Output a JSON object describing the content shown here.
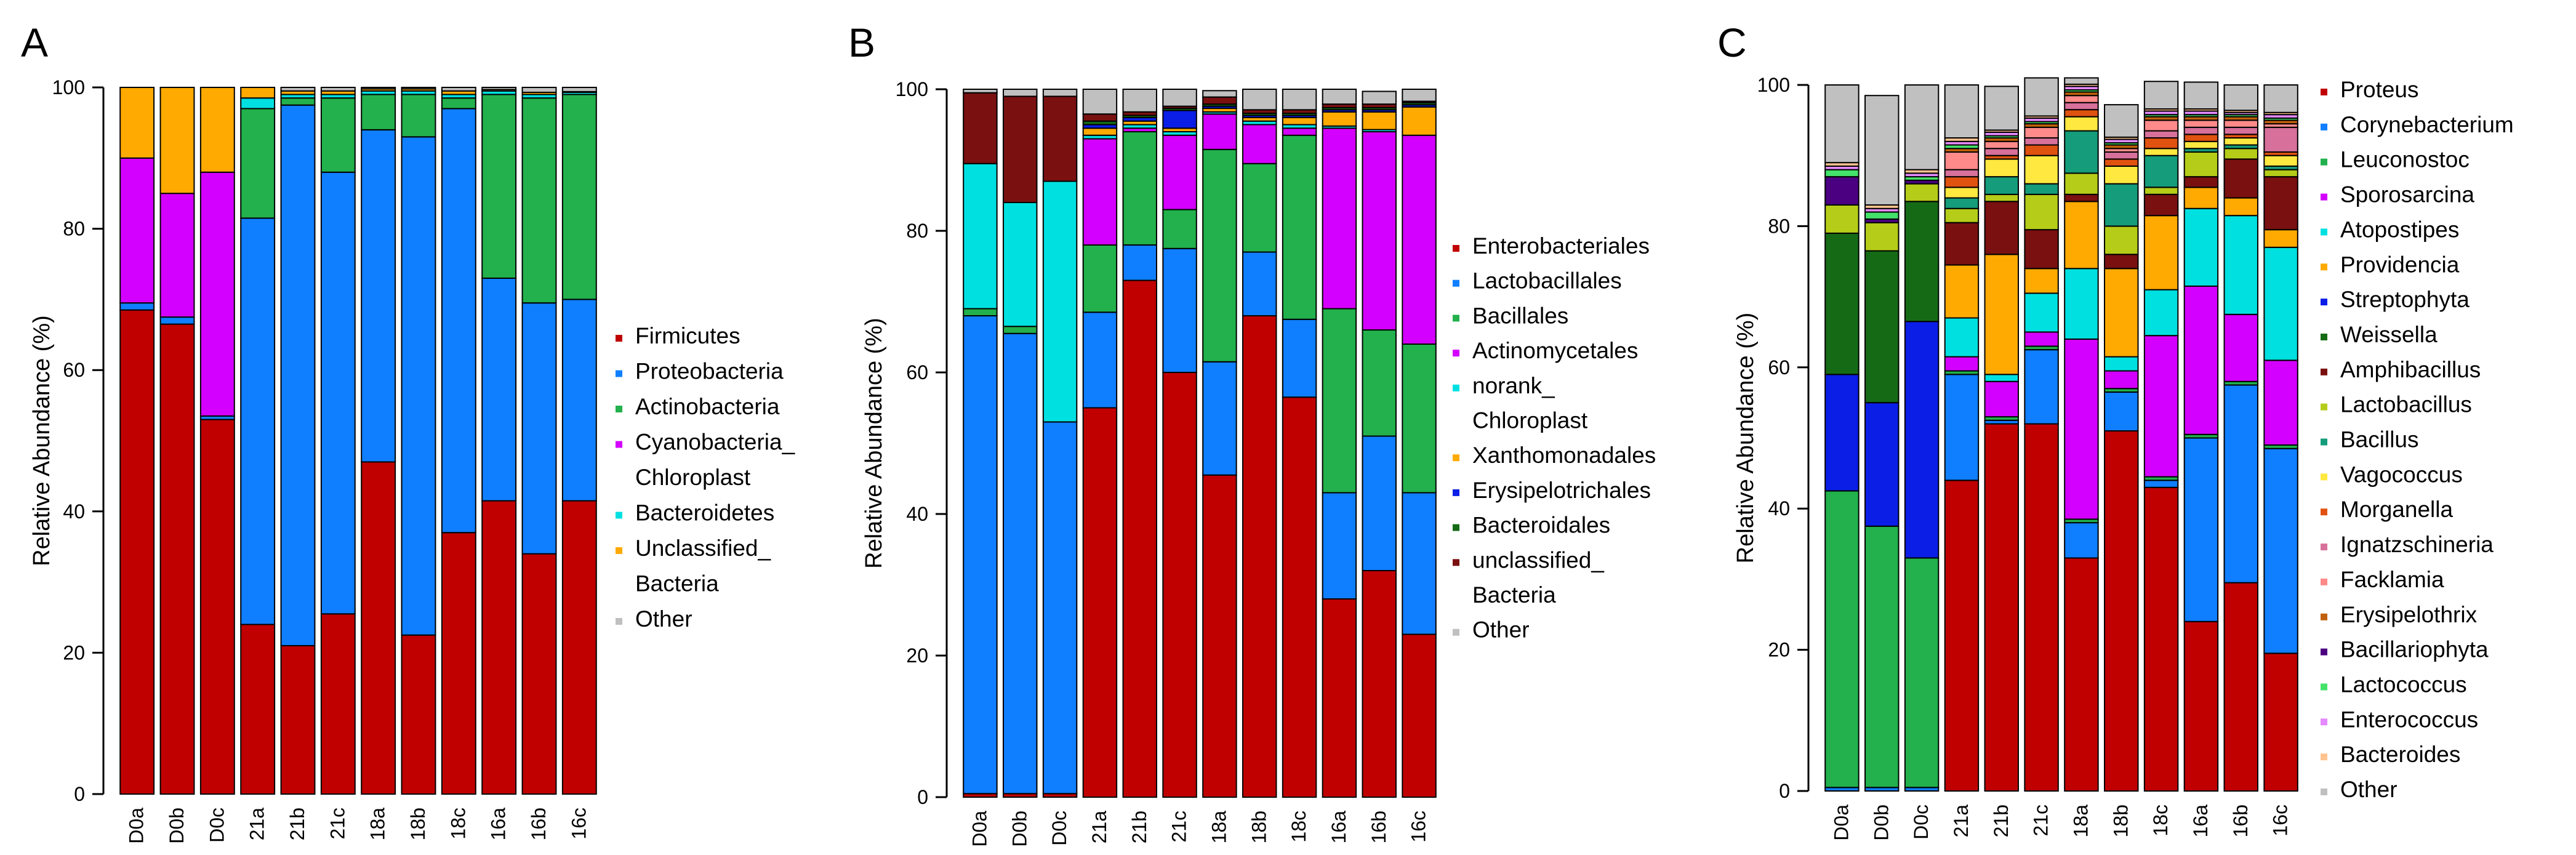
{
  "chart_data": [
    {
      "panel_label": "A",
      "type": "bar",
      "stacked": true,
      "title": "",
      "xlabel": "",
      "ylabel": "Relative Abundance (%)",
      "ylim": [
        0,
        100
      ],
      "yticks": [
        0,
        20,
        40,
        60,
        80,
        100
      ],
      "categories": [
        "D0a",
        "D0b",
        "D0c",
        "21a",
        "21b",
        "21c",
        "18a",
        "18b",
        "18c",
        "16a",
        "16b",
        "16c"
      ],
      "legend": [
        {
          "label": "Firmicutes",
          "color": "#c00000"
        },
        {
          "label": "Proteobacteria",
          "color": "#0f7fff"
        },
        {
          "label": "Actinobacteria",
          "color": "#22b14c"
        },
        {
          "label": "Cyanobacteria_\nChloroplast",
          "color": "#d400ff"
        },
        {
          "label": "Bacteroidetes",
          "color": "#00e0e0"
        },
        {
          "label": "Unclassified_\nBacteria",
          "color": "#ffaa00"
        },
        {
          "label": "Other",
          "color": "#c0c0c0"
        }
      ],
      "series": [
        {
          "name": "Firmicutes",
          "color": "#c00000",
          "values": [
            68.5,
            66.5,
            53,
            24,
            21,
            25.5,
            47,
            22.5,
            37,
            41.5,
            34,
            41.5
          ]
        },
        {
          "name": "Proteobacteria",
          "color": "#0f7fff",
          "values": [
            1,
            1,
            0.5,
            57.5,
            76.5,
            62.5,
            47,
            70.5,
            60,
            31.5,
            35.5,
            28.5
          ]
        },
        {
          "name": "Actinobacteria",
          "color": "#22b14c",
          "values": [
            0,
            0,
            0,
            15.5,
            1,
            10.5,
            5,
            6,
            1.5,
            26,
            29,
            29
          ]
        },
        {
          "name": "Cyanobacteria_\nChloroplast",
          "color": "#d400ff",
          "values": [
            20.5,
            17.5,
            34.5,
            0,
            0,
            0,
            0,
            0,
            0,
            0,
            0,
            0
          ]
        },
        {
          "name": "Bacteroidetes",
          "color": "#00e0e0",
          "values": [
            0,
            0,
            0,
            1.5,
            0.5,
            0.5,
            0.5,
            0.5,
            0.5,
            0.5,
            0.5,
            0.3
          ]
        },
        {
          "name": "Unclassified_\nBacteria",
          "color": "#ffaa00",
          "values": [
            10,
            15,
            12,
            1.5,
            0.5,
            0.5,
            0.3,
            0.3,
            0.5,
            0.2,
            0.3,
            0.1
          ]
        },
        {
          "name": "Other",
          "color": "#c0c0c0",
          "values": [
            0,
            0,
            0,
            0,
            0.5,
            0.5,
            0.2,
            0.2,
            0.5,
            0.3,
            0.7,
            0.6
          ]
        },
        {
          "name": "",
          "color": "#1a1a1a",
          "values": [
            0,
            0,
            0,
            0,
            0,
            0,
            0,
            0,
            0,
            0,
            0,
            0
          ]
        }
      ]
    },
    {
      "panel_label": "B",
      "type": "bar",
      "stacked": true,
      "title": "",
      "xlabel": "",
      "ylabel": "Relative Abundance (%)",
      "ylim": [
        0,
        100
      ],
      "yticks": [
        0,
        20,
        40,
        60,
        80,
        100
      ],
      "categories": [
        "D0a",
        "D0b",
        "D0c",
        "21a",
        "21b",
        "21c",
        "18a",
        "18b",
        "18c",
        "16a",
        "16b",
        "16c"
      ],
      "legend": [
        {
          "label": "Enterobacteriales",
          "color": "#c00000"
        },
        {
          "label": "Lactobacillales",
          "color": "#0f7fff"
        },
        {
          "label": "Bacillales",
          "color": "#22b14c"
        },
        {
          "label": "Actinomycetales",
          "color": "#d400ff"
        },
        {
          "label": "norank_\nChloroplast",
          "color": "#00e0e0"
        },
        {
          "label": "Xanthomonadales",
          "color": "#ffaa00"
        },
        {
          "label": "Erysipelotrichales",
          "color": "#0a1ee6"
        },
        {
          "label": "Bacteroidales",
          "color": "#156b15"
        },
        {
          "label": "unclassified_\nBacteria",
          "color": "#7a1010"
        },
        {
          "label": "Other",
          "color": "#c0c0c0"
        }
      ],
      "series": [
        {
          "name": "Enterobacteriales",
          "color": "#c00000",
          "values": [
            0.5,
            0.5,
            0.5,
            55,
            73,
            60,
            45.5,
            68,
            56.5,
            28,
            32,
            23
          ]
        },
        {
          "name": "Lactobacillales",
          "color": "#0f7fff",
          "values": [
            67.5,
            65,
            52.5,
            13.5,
            5,
            17.5,
            16,
            9,
            11,
            15,
            19,
            20
          ]
        },
        {
          "name": "Bacillales",
          "color": "#22b14c",
          "values": [
            1,
            1,
            0,
            9.5,
            16,
            5.5,
            30,
            12.5,
            26,
            26,
            15,
            21
          ]
        },
        {
          "name": "Actinomycetales",
          "color": "#d400ff",
          "values": [
            0,
            0,
            0,
            15,
            0.5,
            10.5,
            5,
            5.5,
            1,
            25.5,
            28,
            29.5
          ]
        },
        {
          "name": "norank_\nChloroplast",
          "color": "#00e0e0",
          "values": [
            20.5,
            17.5,
            34,
            0.5,
            0.5,
            0.5,
            0.3,
            0.5,
            0.5,
            0.3,
            0.3,
            0
          ]
        },
        {
          "name": "Xanthomonadales",
          "color": "#ffaa00",
          "values": [
            0,
            0,
            0,
            1,
            0.5,
            0.5,
            0.5,
            0.5,
            1,
            2,
            2.5,
            4
          ]
        },
        {
          "name": "Erysipelotrichales",
          "color": "#0a1ee6",
          "values": [
            0,
            0,
            0,
            0.5,
            0.5,
            2.5,
            0.3,
            0.3,
            0.3,
            0.3,
            0.3,
            0.3
          ]
        },
        {
          "name": "Bacteroidales",
          "color": "#156b15",
          "values": [
            0,
            0,
            0,
            0.5,
            0.3,
            0.3,
            0.3,
            0.3,
            0.3,
            0.3,
            0.3,
            0.3
          ]
        },
        {
          "name": "unclassified_\nBacteria",
          "color": "#7a1010",
          "values": [
            10,
            15,
            12,
            1,
            0.5,
            0.3,
            1,
            0.5,
            0.5,
            0.5,
            0.5,
            0.2
          ]
        },
        {
          "name": "Other",
          "color": "#c0c0c0",
          "values": [
            0.5,
            1,
            1,
            3.5,
            3.2,
            2.4,
            0.9,
            2.9,
            2.9,
            2.1,
            1.8,
            1.7
          ]
        }
      ]
    },
    {
      "panel_label": "C",
      "type": "bar",
      "stacked": true,
      "title": "",
      "xlabel": "",
      "ylabel": "Relative Abundance (%)",
      "ylim": [
        0,
        100
      ],
      "yticks": [
        0,
        20,
        40,
        60,
        80,
        100
      ],
      "categories": [
        "D0a",
        "D0b",
        "D0c",
        "21a",
        "21b",
        "21c",
        "18a",
        "18b",
        "18c",
        "16a",
        "16b",
        "16c"
      ],
      "legend": [
        {
          "label": "Proteus",
          "color": "#c00000"
        },
        {
          "label": "Corynebacterium",
          "color": "#0f7fff"
        },
        {
          "label": "Leuconostoc",
          "color": "#22b14c"
        },
        {
          "label": "Sporosarcina",
          "color": "#d400ff"
        },
        {
          "label": "Atopostipes",
          "color": "#00e0e0"
        },
        {
          "label": "Providencia",
          "color": "#ffaa00"
        },
        {
          "label": "Streptophyta",
          "color": "#0a1ee6"
        },
        {
          "label": "Weissella",
          "color": "#156b15"
        },
        {
          "label": "Amphibacillus",
          "color": "#7a1010"
        },
        {
          "label": "Lactobacillus",
          "color": "#b5cc18"
        },
        {
          "label": "Bacillus",
          "color": "#159c7a"
        },
        {
          "label": "Vagococcus",
          "color": "#ffe840"
        },
        {
          "label": "Morganella",
          "color": "#e0520f"
        },
        {
          "label": "Ignatzschineria",
          "color": "#d7709a"
        },
        {
          "label": "Facklamia",
          "color": "#ff8a8a"
        },
        {
          "label": "Erysipelothrix",
          "color": "#c0600a"
        },
        {
          "label": "Bacillariophyta",
          "color": "#4b0082"
        },
        {
          "label": "Lactococcus",
          "color": "#44e26a"
        },
        {
          "label": "Enterococcus",
          "color": "#e48aff"
        },
        {
          "label": "Bacteroides",
          "color": "#ffc490"
        },
        {
          "label": "Other",
          "color": "#c0c0c0"
        }
      ],
      "series": [
        {
          "name": "Proteus",
          "color": "#c00000",
          "values": [
            0,
            0,
            0,
            44,
            52,
            52,
            33,
            51,
            43,
            24,
            29.5,
            19.5
          ]
        },
        {
          "name": "Corynebacterium",
          "color": "#0f7fff",
          "values": [
            0.5,
            0.5,
            0.5,
            15,
            0.5,
            10.5,
            5,
            5.5,
            1,
            26,
            28,
            29
          ]
        },
        {
          "name": "Leuconostoc",
          "color": "#22b14c",
          "values": [
            42,
            37,
            32.5,
            0.5,
            0.5,
            0.5,
            0.5,
            0.5,
            0.5,
            0.5,
            0.5,
            0.5
          ]
        },
        {
          "name": "Sporosarcina",
          "color": "#d400ff",
          "values": [
            0,
            0,
            0,
            2,
            5,
            2,
            25.5,
            2.5,
            20,
            21,
            9.5,
            12
          ]
        },
        {
          "name": "Atopostipes",
          "color": "#00e0e0",
          "values": [
            0,
            0,
            0,
            5.5,
            1,
            5.5,
            10,
            2,
            6.5,
            11,
            14,
            16
          ]
        },
        {
          "name": "Providencia",
          "color": "#ffaa00",
          "values": [
            0,
            0,
            0,
            7.5,
            17,
            3.5,
            9.5,
            12.5,
            10.5,
            3,
            2.5,
            2.5
          ]
        },
        {
          "name": "Streptophyta",
          "color": "#0a1ee6",
          "values": [
            16.5,
            17.5,
            33.5,
            0,
            0,
            0,
            0,
            0,
            0,
            0,
            0,
            0
          ]
        },
        {
          "name": "Weissella",
          "color": "#156b15",
          "values": [
            20,
            21.5,
            17,
            0,
            0,
            0,
            0,
            0,
            0,
            0,
            0,
            0
          ]
        },
        {
          "name": "Amphibacillus",
          "color": "#7a1010",
          "values": [
            0,
            0,
            0,
            6,
            7.5,
            5.5,
            1,
            2,
            3,
            1.5,
            5.5,
            7.5
          ]
        },
        {
          "name": "Lactobacillus",
          "color": "#b5cc18",
          "values": [
            4,
            4,
            2.5,
            2,
            1,
            5,
            3,
            4,
            1,
            3.5,
            1.5,
            1
          ]
        },
        {
          "name": "Bacillus",
          "color": "#159c7a",
          "values": [
            0,
            0,
            0,
            1.5,
            2.5,
            1.5,
            6,
            6,
            4.5,
            0.5,
            0.5,
            0.5
          ]
        },
        {
          "name": "Vagococcus",
          "color": "#ffe840",
          "values": [
            0,
            0,
            0,
            1.5,
            2.5,
            4,
            2,
            2.5,
            1,
            1,
            1,
            1.5
          ]
        },
        {
          "name": "Morganella",
          "color": "#e0520f",
          "values": [
            0,
            0,
            0,
            1.5,
            0.5,
            1.5,
            1,
            1,
            1.5,
            1,
            0.5,
            0.5
          ]
        },
        {
          "name": "Ignatzschineria",
          "color": "#d7709a",
          "values": [
            0,
            0,
            0,
            1,
            1,
            1,
            1,
            1,
            1,
            1,
            1,
            3.5
          ]
        },
        {
          "name": "Facklamia",
          "color": "#ff8a8a",
          "values": [
            0,
            0,
            0,
            2.5,
            1,
            1.5,
            1,
            0.5,
            1.5,
            1,
            1,
            0.5
          ]
        },
        {
          "name": "Erysipelothrix",
          "color": "#c0600a",
          "values": [
            0,
            0,
            0,
            0.5,
            0.5,
            0.5,
            0.5,
            0.5,
            0.5,
            0.5,
            0.5,
            0.5
          ]
        },
        {
          "name": "Bacillariophyta",
          "color": "#4b0082",
          "values": [
            4,
            0.5,
            0.5,
            0,
            0,
            0,
            0,
            0,
            0,
            0,
            0,
            0
          ]
        },
        {
          "name": "Lactococcus",
          "color": "#44e26a",
          "values": [
            1,
            1,
            0.5,
            0.5,
            0.3,
            0.3,
            0.3,
            0.3,
            0.3,
            0.3,
            0.3,
            0.3
          ]
        },
        {
          "name": "Enterococcus",
          "color": "#e48aff",
          "values": [
            0.5,
            0.5,
            0.5,
            0.5,
            0.5,
            0.5,
            0.5,
            0.5,
            0.5,
            0.5,
            0.3,
            0.5
          ]
        },
        {
          "name": "Bacteroides",
          "color": "#ffc490",
          "values": [
            0.5,
            0.5,
            0.5,
            0.5,
            0.3,
            0.3,
            0.3,
            0.3,
            0.3,
            0.3,
            0.3,
            0.3
          ]
        },
        {
          "name": "Other",
          "color": "#c0c0c0",
          "values": [
            11,
            15.5,
            12,
            7.5,
            6.2,
            5.4,
            0.9,
            4.6,
            3.9,
            3.8,
            3.6,
            3.9
          ]
        }
      ]
    }
  ]
}
